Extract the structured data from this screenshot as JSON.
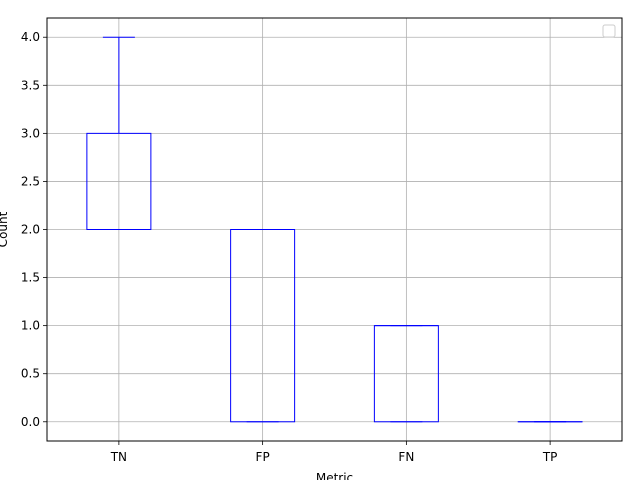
{
  "chart_data": {
    "type": "box",
    "title": "",
    "xlabel": "Metric",
    "ylabel": "Count",
    "categories": [
      "TN",
      "FP",
      "FN",
      "TP"
    ],
    "boxes": [
      {
        "category": "TN",
        "whisker_low": 2,
        "q1": 2,
        "median": 2,
        "q3": 3,
        "whisker_high": 4
      },
      {
        "category": "FP",
        "whisker_low": 0,
        "q1": 0,
        "median": 2,
        "q3": 2,
        "whisker_high": 2
      },
      {
        "category": "FN",
        "whisker_low": 0,
        "q1": 0,
        "median": 1,
        "q3": 1,
        "whisker_high": 1
      },
      {
        "category": "TP",
        "whisker_low": 0,
        "q1": 0,
        "median": 0,
        "q3": 0,
        "whisker_high": 0
      }
    ],
    "ylim": [
      -0.2,
      4.2
    ],
    "yticks": [
      "0.0",
      "0.5",
      "1.0",
      "1.5",
      "2.0",
      "2.5",
      "3.0",
      "3.5",
      "4.0"
    ],
    "grid": true,
    "legend": {
      "placement": "top-right",
      "entries": []
    },
    "colors": {
      "box": "#0000ff",
      "grid": "#b0b0b0",
      "axes": "#000000"
    }
  }
}
